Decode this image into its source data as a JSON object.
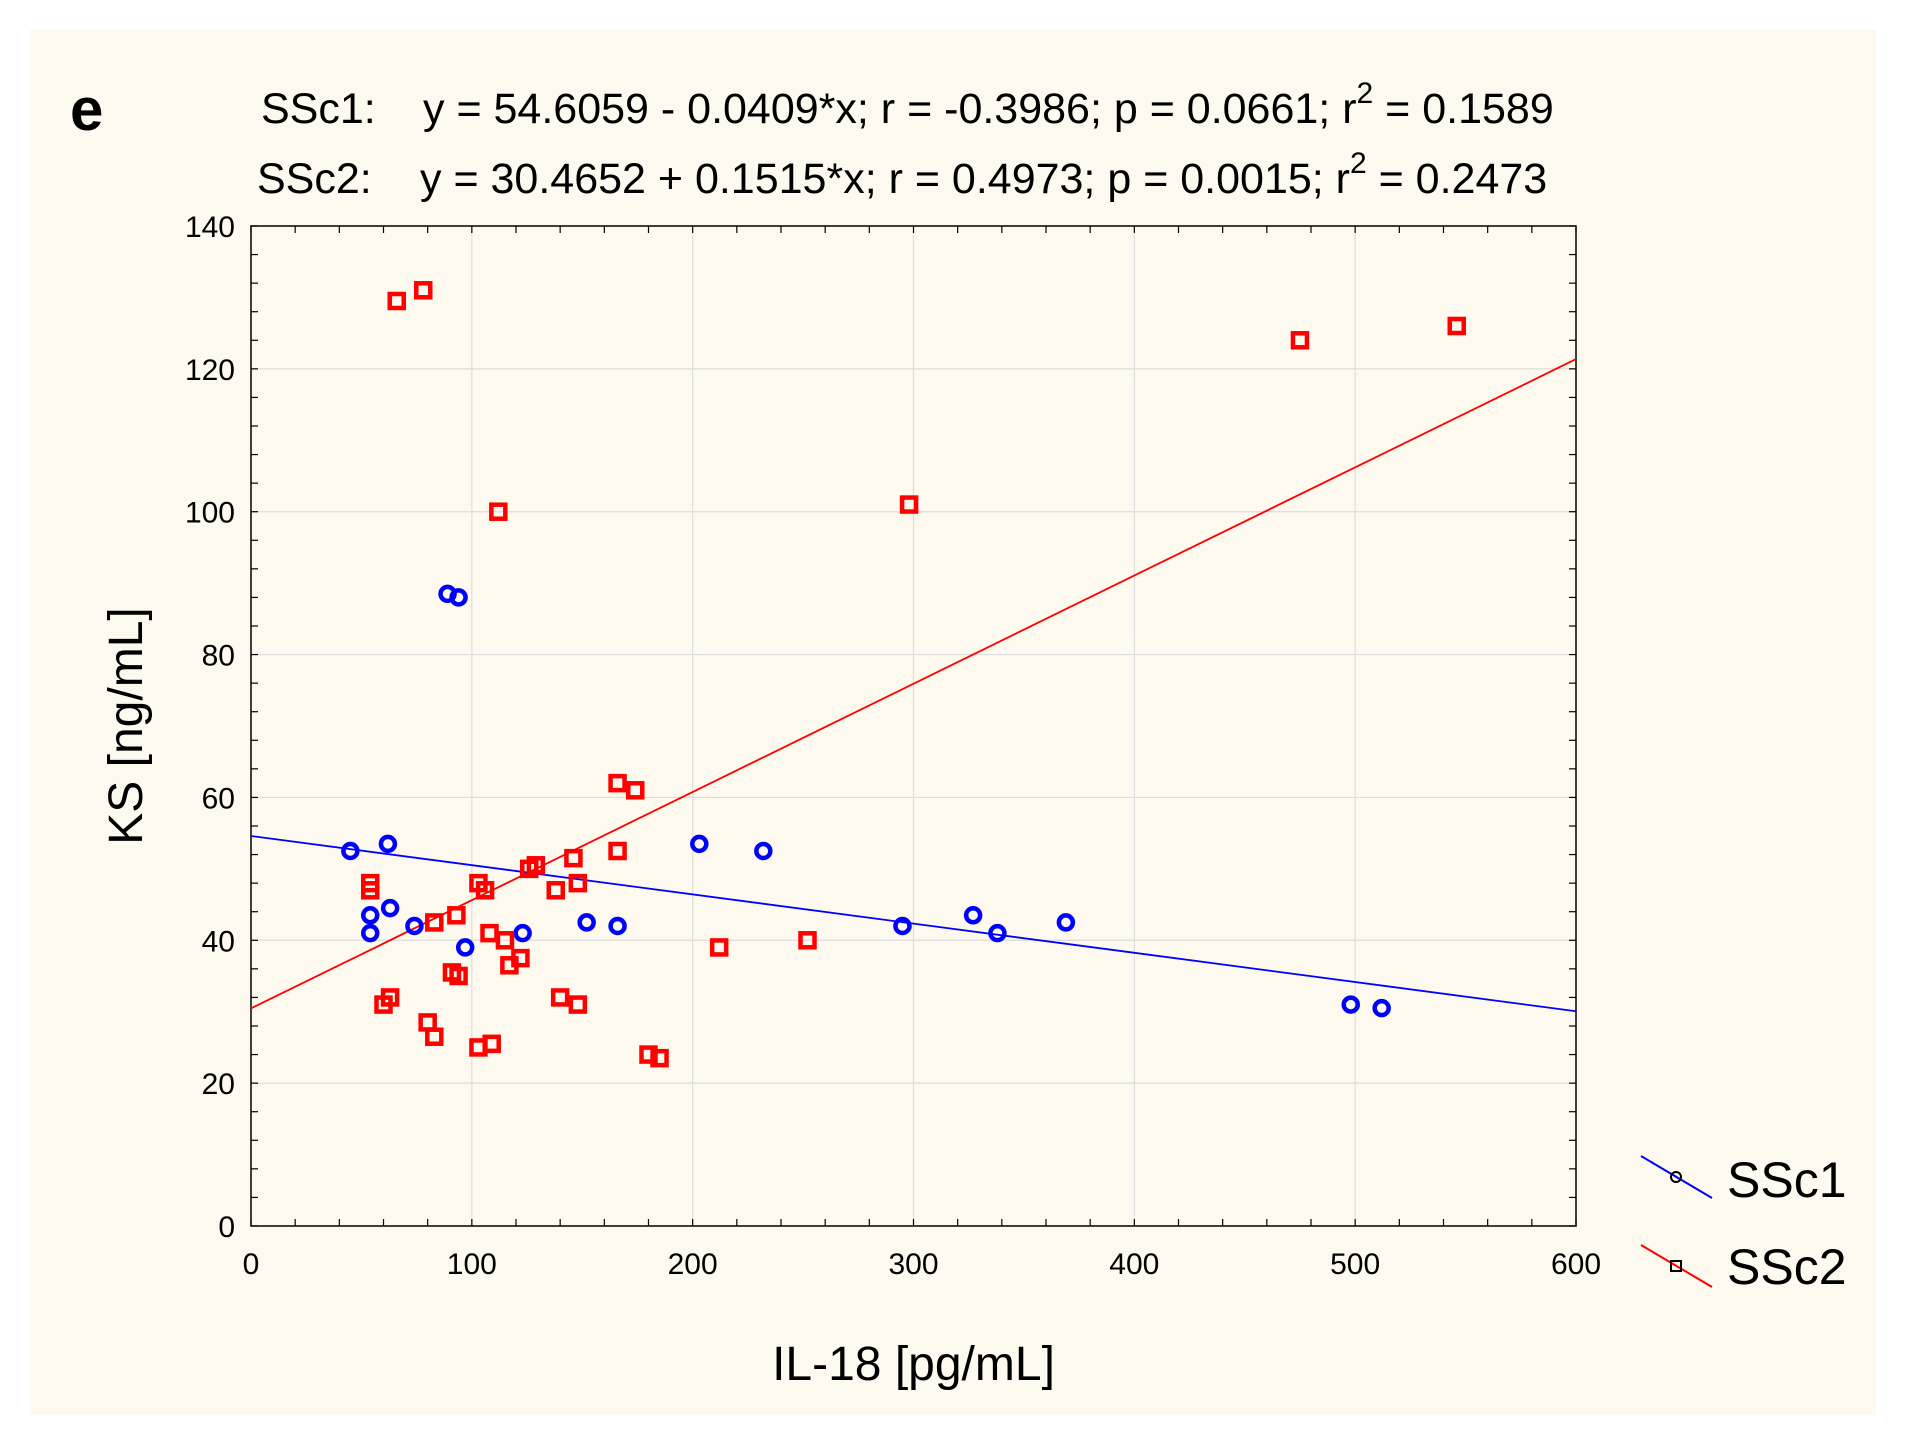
{
  "panel_letter": "e",
  "chart_data": {
    "type": "scatter",
    "panel_label": "e",
    "equations": [
      {
        "series": "SSc1",
        "label": "SSc1:",
        "text": "y = 54.6059 - 0.0409*x;  r = -0.3986; p = 0.0661; r",
        "exp": "2",
        "tail": " = 0.1589"
      },
      {
        "series": "SSc2",
        "label": "SSc2:",
        "text": "y = 30.4652 + 0.1515*x;  r =  0.4973; p = 0.0015; r",
        "exp": "2",
        "tail": " = 0.2473"
      }
    ],
    "xlabel": "IL-18 [pg/mL]",
    "ylabel": "KS [ng/mL]",
    "xlim": [
      0,
      600
    ],
    "ylim": [
      0,
      140
    ],
    "xticks": [
      0,
      100,
      200,
      300,
      400,
      500,
      600
    ],
    "yticks": [
      0,
      20,
      40,
      60,
      80,
      100,
      120,
      140
    ],
    "grid": true,
    "legend_position": "bottom-right outside",
    "series": [
      {
        "name": "SSc1",
        "color": "#0000ff",
        "marker": "circle",
        "fit": {
          "intercept": 54.6059,
          "slope": -0.0409
        },
        "points": [
          [
            45,
            52.5
          ],
          [
            54,
            43.5
          ],
          [
            54,
            41
          ],
          [
            62,
            53.5
          ],
          [
            63,
            44.5
          ],
          [
            74,
            42
          ],
          [
            89,
            88.5
          ],
          [
            94,
            88
          ],
          [
            97,
            39
          ],
          [
            123,
            41
          ],
          [
            152,
            42.5
          ],
          [
            166,
            42
          ],
          [
            203,
            53.5
          ],
          [
            232,
            52.5
          ],
          [
            295,
            42
          ],
          [
            327,
            43.5
          ],
          [
            338,
            41
          ],
          [
            369,
            42.5
          ],
          [
            498,
            31
          ],
          [
            512,
            30.5
          ]
        ]
      },
      {
        "name": "SSc2",
        "color": "#ff0000",
        "marker": "square",
        "fit": {
          "intercept": 30.4652,
          "slope": 0.1515
        },
        "points": [
          [
            54,
            48
          ],
          [
            54,
            47
          ],
          [
            60,
            31
          ],
          [
            63,
            32
          ],
          [
            66,
            129.5
          ],
          [
            78,
            131
          ],
          [
            80,
            28.5
          ],
          [
            83,
            26.5
          ],
          [
            83,
            42.5
          ],
          [
            91,
            35.5
          ],
          [
            93,
            43.5
          ],
          [
            94,
            35
          ],
          [
            103,
            48
          ],
          [
            103,
            25
          ],
          [
            106,
            47
          ],
          [
            108,
            41
          ],
          [
            109,
            25.5
          ],
          [
            112,
            100
          ],
          [
            115,
            40
          ],
          [
            117,
            36.5
          ],
          [
            122,
            37.5
          ],
          [
            126,
            50
          ],
          [
            129,
            50.5
          ],
          [
            138,
            47
          ],
          [
            140,
            32
          ],
          [
            146,
            51.5
          ],
          [
            148,
            48
          ],
          [
            148,
            31
          ],
          [
            166,
            62
          ],
          [
            166,
            52.5
          ],
          [
            174,
            61
          ],
          [
            180,
            24
          ],
          [
            185,
            23.5
          ],
          [
            212,
            39
          ],
          [
            252,
            40
          ],
          [
            298,
            101
          ],
          [
            475,
            124
          ],
          [
            546,
            126
          ]
        ]
      }
    ]
  }
}
